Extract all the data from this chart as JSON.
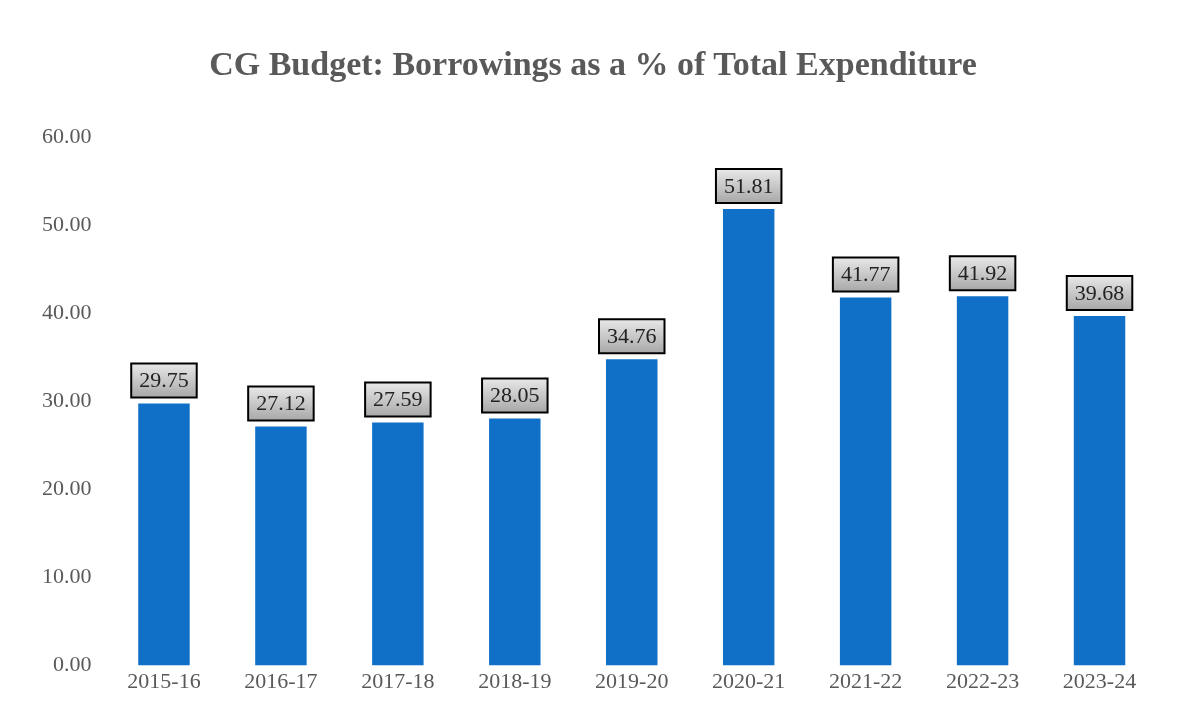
{
  "chart_data": {
    "type": "bar",
    "title": "CG Budget: Borrowings as a % of Total Expenditure",
    "categories": [
      "2015-16",
      "2016-17",
      "2017-18",
      "2018-19",
      "2019-20",
      "2020-21",
      "2021-22",
      "2022-23",
      "2023-24"
    ],
    "values": [
      29.75,
      27.12,
      27.59,
      28.05,
      34.76,
      51.81,
      41.77,
      41.92,
      39.68
    ],
    "color": "#1070c8",
    "ylim": [
      0,
      60
    ],
    "yticks": [
      {
        "value": 0,
        "label": "0.00"
      },
      {
        "value": 10,
        "label": "10.00"
      },
      {
        "value": 20,
        "label": "20.00"
      },
      {
        "value": 30,
        "label": "30.00"
      },
      {
        "value": 40,
        "label": "40.00"
      },
      {
        "value": 50,
        "label": "50.00"
      },
      {
        "value": 60,
        "label": "60.00"
      }
    ],
    "data_labels": true,
    "grid": false,
    "legend": false
  }
}
